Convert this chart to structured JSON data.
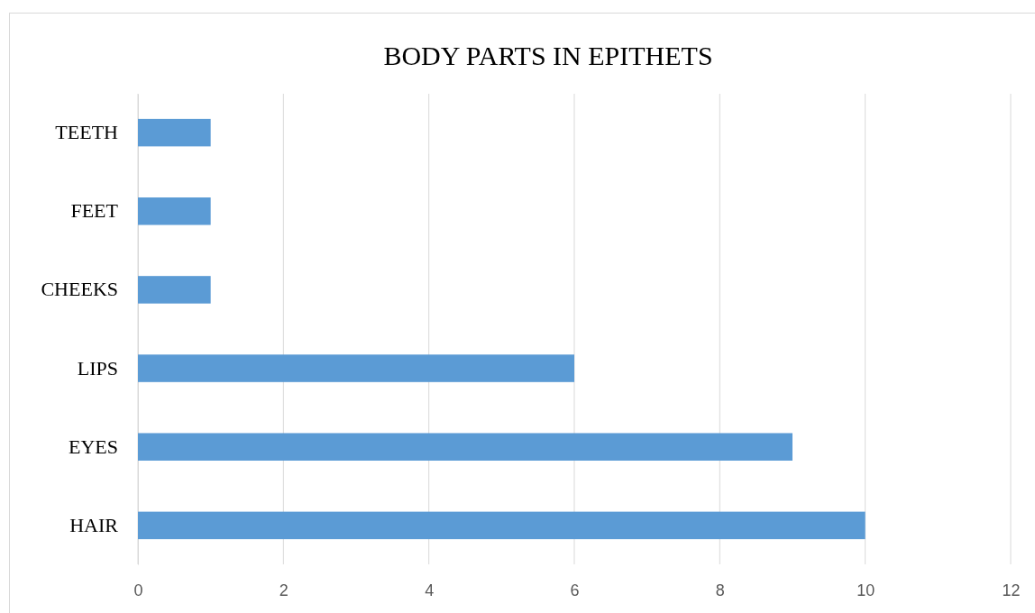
{
  "chart_data": {
    "type": "bar",
    "title": "BODY PARTS IN EPITHETS",
    "orientation": "horizontal",
    "categories": [
      "TEETH",
      "FEET",
      "CHEEKS",
      "LIPS",
      "EYES",
      "HAIR"
    ],
    "values": [
      1,
      1,
      1,
      6,
      9,
      10
    ],
    "color": "#5b9bd5",
    "xlim": [
      0,
      12
    ],
    "xticks": [
      0,
      2,
      4,
      6,
      8,
      10,
      12
    ],
    "grid": "x"
  }
}
